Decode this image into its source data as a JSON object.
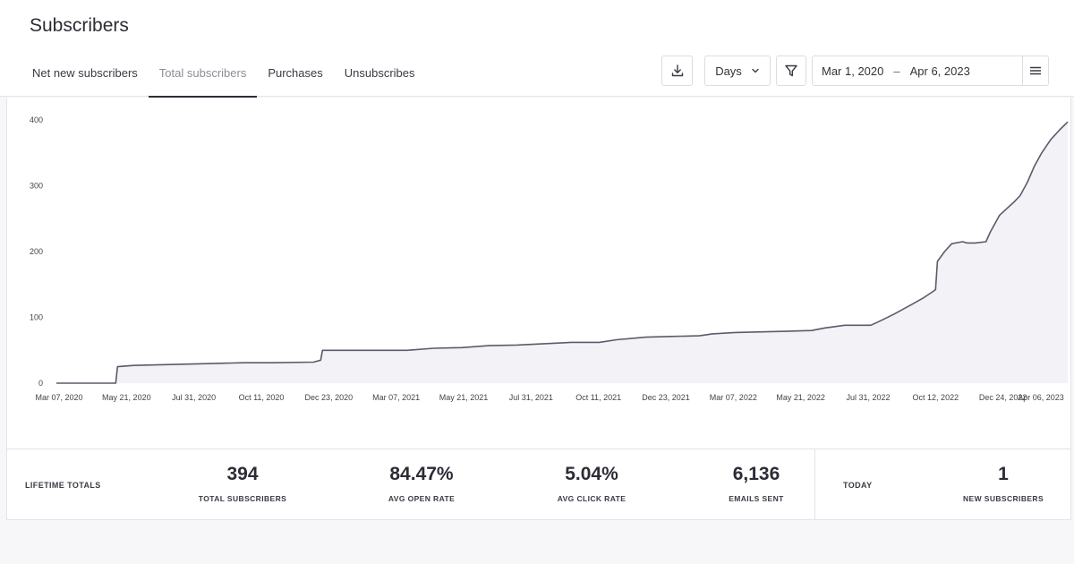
{
  "header": {
    "title": "Subscribers",
    "tabs": [
      {
        "label": "Net new subscribers"
      },
      {
        "label": "Total subscribers"
      },
      {
        "label": "Purchases"
      },
      {
        "label": "Unsubscribes"
      }
    ],
    "active_tab": 1
  },
  "toolbar": {
    "download_icon": "download-icon",
    "interval_select": "Days",
    "filter_icon": "filter-icon",
    "date_start": "Mar 1, 2020",
    "date_separator": "–",
    "date_end": "Apr 6, 2023",
    "menu_icon": "hamburger-icon"
  },
  "colors": {
    "line": "#5b5b69",
    "area_fill": "#f2f2f7",
    "tab_active_underline": "#2e2e38"
  },
  "chart_data": {
    "type": "area",
    "title": "",
    "xlabel": "",
    "ylabel": "",
    "ylim": [
      0,
      400
    ],
    "yticks": [
      0,
      100,
      200,
      300,
      400
    ],
    "x_tick_labels": [
      "Mar 07, 2020",
      "May 21, 2020",
      "Jul 31, 2020",
      "Oct 11, 2020",
      "Dec 23, 2020",
      "Mar 07, 2021",
      "May 21, 2021",
      "Jul 31, 2021",
      "Oct 11, 2021",
      "Dec 23, 2021",
      "Mar 07, 2022",
      "May 21, 2022",
      "Jul 31, 2022",
      "Oct 12, 2022",
      "Dec 24, 2022",
      "Apr 06, 2023"
    ],
    "xlim": [
      "2020-03-07",
      "2023-04-06"
    ],
    "grid": false,
    "legend": "none",
    "series": [
      {
        "points": [
          [
            "2020-03-07",
            0
          ],
          [
            "2020-05-12",
            0
          ],
          [
            "2020-05-14",
            25
          ],
          [
            "2020-06-01",
            27
          ],
          [
            "2020-07-01",
            28
          ],
          [
            "2020-08-01",
            29
          ],
          [
            "2020-09-01",
            30
          ],
          [
            "2020-10-01",
            31
          ],
          [
            "2020-11-01",
            31
          ],
          [
            "2020-12-18",
            32
          ],
          [
            "2020-12-26",
            35
          ],
          [
            "2020-12-28",
            50
          ],
          [
            "2021-02-01",
            50
          ],
          [
            "2021-04-01",
            50
          ],
          [
            "2021-05-01",
            53
          ],
          [
            "2021-06-01",
            54
          ],
          [
            "2021-07-01",
            57
          ],
          [
            "2021-08-01",
            58
          ],
          [
            "2021-09-01",
            60
          ],
          [
            "2021-10-01",
            62
          ],
          [
            "2021-11-01",
            62
          ],
          [
            "2021-11-20",
            66
          ],
          [
            "2021-12-23",
            70
          ],
          [
            "2022-01-20",
            71
          ],
          [
            "2022-02-20",
            72
          ],
          [
            "2022-03-07",
            75
          ],
          [
            "2022-04-01",
            77
          ],
          [
            "2022-05-01",
            78
          ],
          [
            "2022-06-01",
            79
          ],
          [
            "2022-06-25",
            80
          ],
          [
            "2022-07-10",
            84
          ],
          [
            "2022-08-01",
            88
          ],
          [
            "2022-08-30",
            88
          ],
          [
            "2022-09-10",
            95
          ],
          [
            "2022-09-25",
            105
          ],
          [
            "2022-10-15",
            120
          ],
          [
            "2022-10-28",
            130
          ],
          [
            "2022-11-10",
            142
          ],
          [
            "2022-11-12",
            185
          ],
          [
            "2022-11-20",
            200
          ],
          [
            "2022-11-28",
            212
          ],
          [
            "2022-12-10",
            215
          ],
          [
            "2022-12-15",
            213
          ],
          [
            "2022-12-24",
            213
          ],
          [
            "2023-01-05",
            215
          ],
          [
            "2023-01-10",
            230
          ],
          [
            "2023-01-20",
            255
          ],
          [
            "2023-01-28",
            265
          ],
          [
            "2023-02-05",
            275
          ],
          [
            "2023-02-12",
            285
          ],
          [
            "2023-02-20",
            305
          ],
          [
            "2023-02-28",
            330
          ],
          [
            "2023-03-08",
            350
          ],
          [
            "2023-03-18",
            370
          ],
          [
            "2023-03-28",
            385
          ],
          [
            "2023-04-06",
            397
          ]
        ]
      }
    ]
  },
  "stats": {
    "lifetime_label": "LIFETIME TOTALS",
    "items": [
      {
        "value": "394",
        "label": "TOTAL SUBSCRIBERS"
      },
      {
        "value": "84.47%",
        "label": "AVG OPEN RATE"
      },
      {
        "value": "5.04%",
        "label": "AVG CLICK RATE"
      },
      {
        "value": "6,136",
        "label": "EMAILS SENT"
      }
    ],
    "today_label": "TODAY",
    "today": {
      "value": "1",
      "label": "NEW SUBSCRIBERS"
    }
  }
}
